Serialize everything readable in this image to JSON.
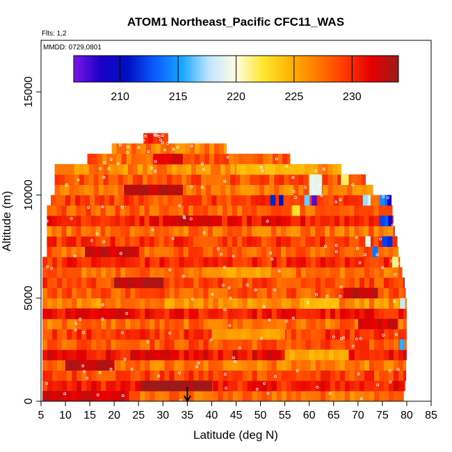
{
  "chart_data": {
    "type": "heatmap",
    "title": "ATOM1 Northeast_Pacific CFC11_WAS",
    "xlabel": "Latitude (deg N)",
    "ylabel": "Altitude (m)",
    "xlim": [
      5,
      85
    ],
    "ylim": [
      0,
      17500
    ],
    "x_ticks": [
      "5",
      "10",
      "15",
      "20",
      "25",
      "30",
      "35",
      "40",
      "45",
      "50",
      "55",
      "60",
      "65",
      "70",
      "75",
      "80",
      "85"
    ],
    "y_ticks": [
      "0",
      "5000",
      "10000",
      "15000"
    ],
    "annotations": {
      "flights": "Flts: 1,2",
      "dates": "MMDD: 0729,0801"
    },
    "colorbar": {
      "range": [
        206,
        234
      ],
      "ticks": [
        "210",
        "215",
        "220",
        "225",
        "230"
      ],
      "colors": [
        "#7b16e6",
        "#1a00c8",
        "#0010c0",
        "#0a5cff",
        "#17a6ff",
        "#bfe6ff",
        "#fffde0",
        "#ffe630",
        "#ffb400",
        "#ff7a00",
        "#ff3a00",
        "#e60000",
        "#9b1a1a"
      ]
    },
    "marker_latitude": 35,
    "rows": [
      {
        "z0": 0,
        "z1": 500,
        "lat0": 5.3,
        "lat1": 79.3,
        "level": 227.5
      },
      {
        "z0": 500,
        "z1": 1000,
        "lat0": 5.3,
        "lat1": 79.6,
        "level": 230.5
      },
      {
        "z0": 1000,
        "z1": 1500,
        "lat0": 5.3,
        "lat1": 79.8,
        "level": 229.0
      },
      {
        "z0": 1500,
        "z1": 2000,
        "lat0": 5.3,
        "lat1": 79.8,
        "level": 227.0
      },
      {
        "z0": 2000,
        "z1": 2500,
        "lat0": 5.3,
        "lat1": 79.9,
        "level": 231.0
      },
      {
        "z0": 2500,
        "z1": 3000,
        "lat0": 5.3,
        "lat1": 79.9,
        "level": 228.5
      },
      {
        "z0": 3000,
        "z1": 3500,
        "lat0": 5.3,
        "lat1": 79.9,
        "level": 229.5
      },
      {
        "z0": 3500,
        "z1": 4000,
        "lat0": 5.3,
        "lat1": 79.9,
        "level": 227.5
      },
      {
        "z0": 4000,
        "z1": 4500,
        "lat0": 5.3,
        "lat1": 79.9,
        "level": 230.5
      },
      {
        "z0": 4500,
        "z1": 5000,
        "lat0": 5.3,
        "lat1": 79.9,
        "level": 226.5
      },
      {
        "z0": 5000,
        "z1": 5500,
        "lat0": 5.3,
        "lat1": 79.7,
        "level": 228.5
      },
      {
        "z0": 5500,
        "z1": 6000,
        "lat0": 5.3,
        "lat1": 79.5,
        "level": 229.0
      },
      {
        "z0": 6000,
        "z1": 6500,
        "lat0": 5.3,
        "lat1": 79.0,
        "level": 227.5
      },
      {
        "z0": 6500,
        "z1": 7000,
        "lat0": 5.3,
        "lat1": 78.5,
        "level": 230.0
      },
      {
        "z0": 7000,
        "z1": 7500,
        "lat0": 6.2,
        "lat1": 78.2,
        "level": 228.0
      },
      {
        "z0": 7500,
        "z1": 8000,
        "lat0": 6.2,
        "lat1": 78.0,
        "level": 229.5
      },
      {
        "z0": 8000,
        "z1": 8500,
        "lat0": 6.2,
        "lat1": 77.5,
        "level": 227.5
      },
      {
        "z0": 8500,
        "z1": 9000,
        "lat0": 6.2,
        "lat1": 77.2,
        "level": 230.5
      },
      {
        "z0": 9000,
        "z1": 9500,
        "lat0": 6.2,
        "lat1": 77.0,
        "level": 228.0
      },
      {
        "z0": 9500,
        "z1": 10000,
        "lat0": 7.0,
        "lat1": 76.5,
        "level": 229.0
      },
      {
        "z0": 10000,
        "z1": 10500,
        "lat0": 7.8,
        "lat1": 73.0,
        "level": 227.0
      },
      {
        "z0": 10500,
        "z1": 11000,
        "lat0": 7.8,
        "lat1": 71.5,
        "level": 228.5
      },
      {
        "z0": 11000,
        "z1": 11500,
        "lat0": 7.8,
        "lat1": 66.5,
        "level": 226.5
      },
      {
        "z0": 11500,
        "z1": 12000,
        "lat0": 14.5,
        "lat1": 56.0,
        "level": 228.0
      },
      {
        "z0": 12000,
        "z1": 12500,
        "lat0": 19.5,
        "lat1": 43.0,
        "level": 227.0
      },
      {
        "z0": 12500,
        "z1": 13000,
        "lat0": 26.0,
        "lat1": 31.0,
        "level": 229.5
      }
    ],
    "patches": [
      {
        "z0": 9500,
        "z1": 10000,
        "lat0": 52.0,
        "lat1": 53.0,
        "level": 212
      },
      {
        "z0": 9500,
        "z1": 10000,
        "lat0": 53.8,
        "lat1": 54.6,
        "level": 210
      },
      {
        "z0": 9500,
        "z1": 10000,
        "lat0": 60.5,
        "lat1": 61.5,
        "level": 207
      },
      {
        "z0": 9000,
        "z1": 9500,
        "lat0": 56.5,
        "lat1": 58.0,
        "level": 223
      },
      {
        "z0": 9500,
        "z1": 10000,
        "lat0": 59.0,
        "lat1": 60.0,
        "level": 217
      },
      {
        "z0": 10000,
        "z1": 11000,
        "lat0": 60.0,
        "lat1": 62.5,
        "level": 219
      },
      {
        "z0": 10500,
        "z1": 11000,
        "lat0": 66.5,
        "lat1": 68.0,
        "level": 221
      },
      {
        "z0": 9500,
        "z1": 10000,
        "lat0": 71.0,
        "lat1": 72.5,
        "level": 218
      },
      {
        "z0": 9500,
        "z1": 10000,
        "lat0": 74.5,
        "lat1": 76.0,
        "level": 214
      },
      {
        "z0": 9500,
        "z1": 10000,
        "lat0": 76.0,
        "lat1": 76.8,
        "level": 209
      },
      {
        "z0": 8500,
        "z1": 9000,
        "lat0": 74.5,
        "lat1": 76.2,
        "level": 213
      },
      {
        "z0": 8500,
        "z1": 9000,
        "lat0": 76.2,
        "lat1": 77.0,
        "level": 208
      },
      {
        "z0": 7500,
        "z1": 8000,
        "lat0": 75.0,
        "lat1": 77.0,
        "level": 212
      },
      {
        "z0": 7500,
        "z1": 8000,
        "lat0": 71.5,
        "lat1": 72.5,
        "level": 219
      },
      {
        "z0": 7000,
        "z1": 7500,
        "lat0": 73.0,
        "lat1": 74.0,
        "level": 214
      },
      {
        "z0": 6500,
        "z1": 7000,
        "lat0": 77.0,
        "lat1": 78.2,
        "level": 222
      },
      {
        "z0": 4500,
        "z1": 5000,
        "lat0": 78.6,
        "lat1": 79.6,
        "level": 218
      },
      {
        "z0": 2500,
        "z1": 3000,
        "lat0": 78.5,
        "lat1": 79.5,
        "level": 215
      },
      {
        "z0": 500,
        "z1": 1000,
        "lat0": 25.5,
        "lat1": 40.0,
        "level": 234
      },
      {
        "z0": 4000,
        "z1": 4500,
        "lat0": 10.0,
        "lat1": 22.0,
        "level": 232
      },
      {
        "z0": 5500,
        "z1": 6000,
        "lat0": 20.0,
        "lat1": 30.0,
        "level": 233
      },
      {
        "z0": 7000,
        "z1": 7500,
        "lat0": 14.0,
        "lat1": 25.0,
        "level": 232.5
      },
      {
        "z0": 8500,
        "z1": 9000,
        "lat0": 30.0,
        "lat1": 42.0,
        "level": 232
      },
      {
        "z0": 10000,
        "z1": 10500,
        "lat0": 22.0,
        "lat1": 34.0,
        "level": 233
      },
      {
        "z0": 11500,
        "z1": 12000,
        "lat0": 28.0,
        "lat1": 34.0,
        "level": 232
      },
      {
        "z0": 3000,
        "z1": 3500,
        "lat0": 40.0,
        "lat1": 55.0,
        "level": 225.5
      },
      {
        "z0": 2000,
        "z1": 2500,
        "lat0": 55.0,
        "lat1": 68.0,
        "level": 225
      },
      {
        "z0": 6000,
        "z1": 6500,
        "lat0": 38.0,
        "lat1": 52.0,
        "level": 225.5
      },
      {
        "z0": 11000,
        "z1": 11500,
        "lat0": 45.0,
        "lat1": 60.0,
        "level": 224.5
      },
      {
        "z0": 4500,
        "z1": 5000,
        "lat0": 58.0,
        "lat1": 66.0,
        "level": 224.5
      },
      {
        "z0": 0,
        "z1": 500,
        "lat0": 5.3,
        "lat1": 23.0,
        "level": 232
      },
      {
        "z0": 1500,
        "z1": 2000,
        "lat0": 10.0,
        "lat1": 20.0,
        "level": 233
      },
      {
        "z0": 3500,
        "z1": 4000,
        "lat0": 70.0,
        "lat1": 78.0,
        "level": 232
      },
      {
        "z0": 5000,
        "z1": 5500,
        "lat0": 67.0,
        "lat1": 74.0,
        "level": 233
      }
    ]
  }
}
